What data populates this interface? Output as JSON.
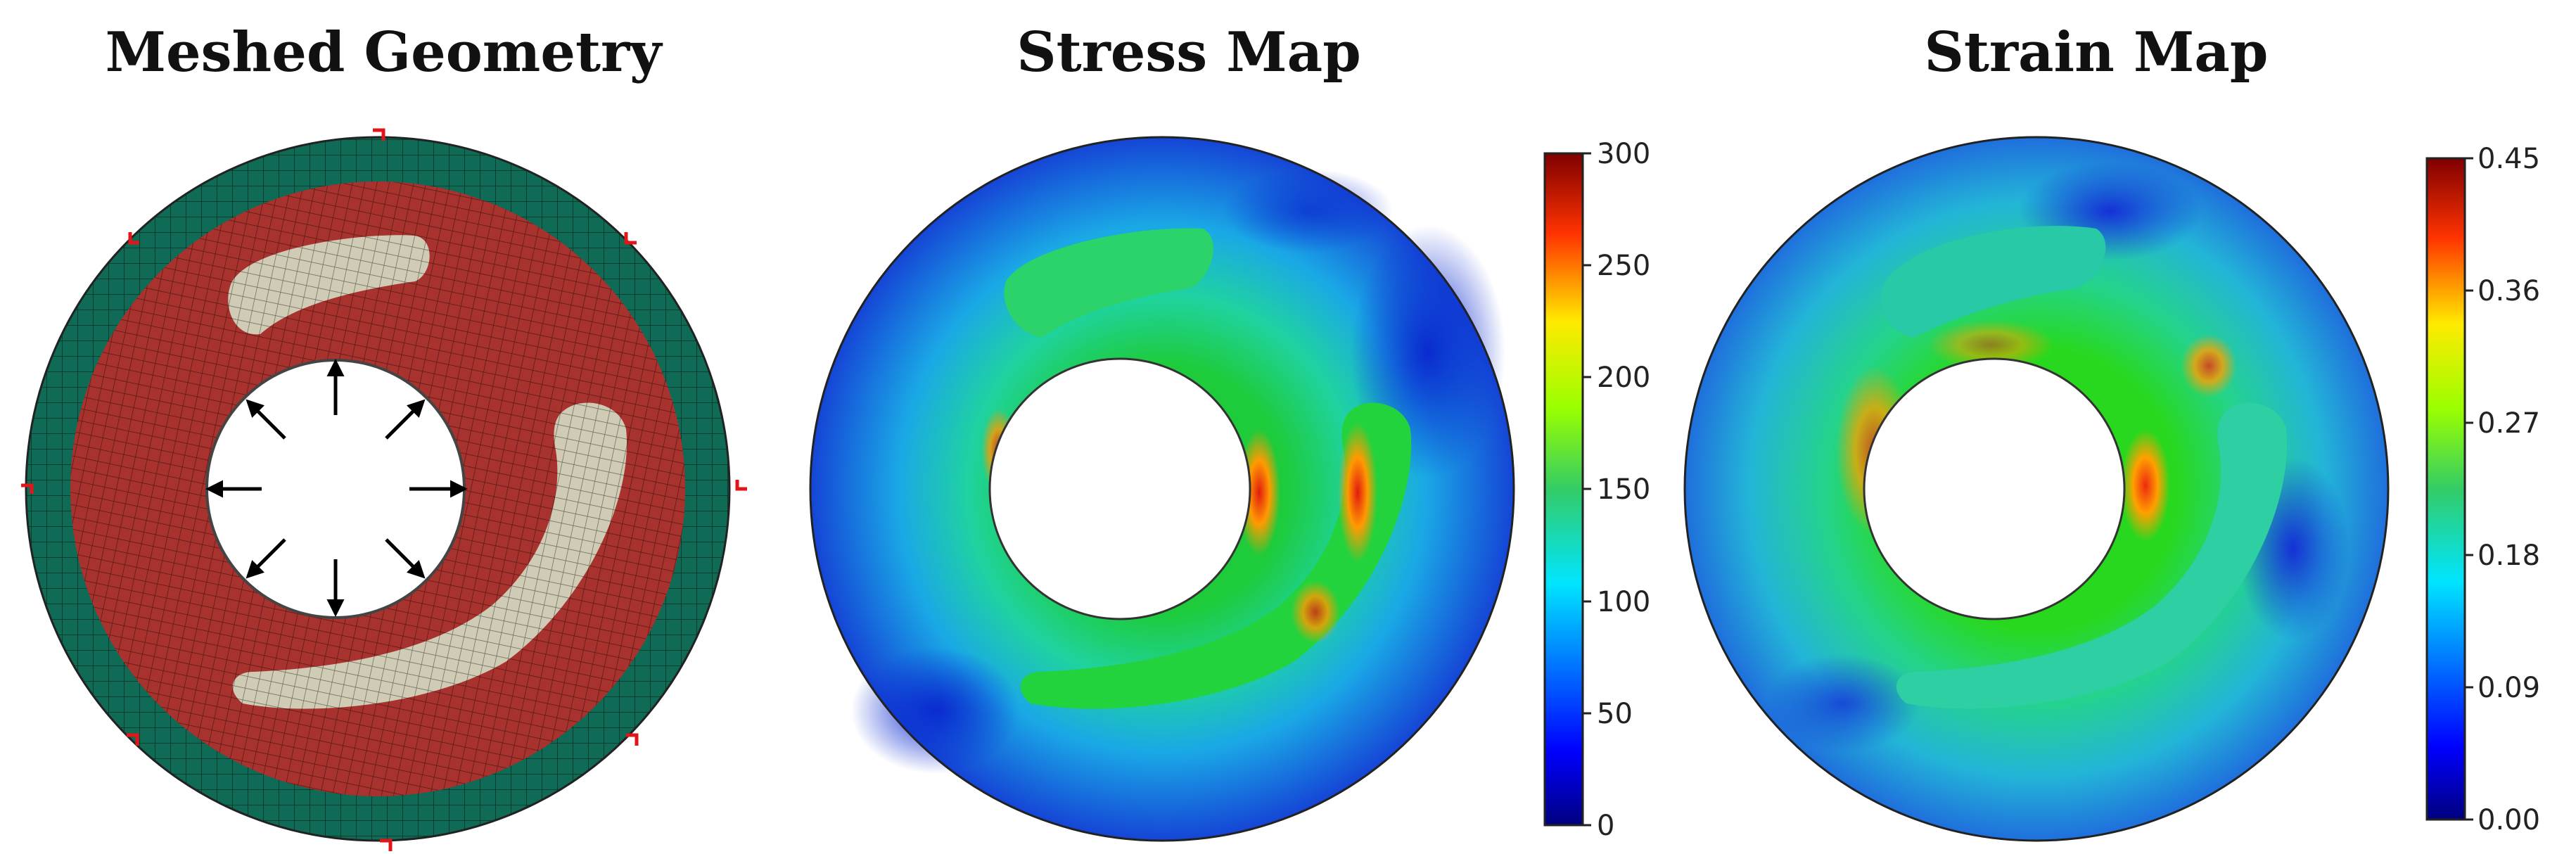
{
  "panels": [
    {
      "title": "Meshed Geometry"
    },
    {
      "title": "Stress Map"
    },
    {
      "title": "Strain Map"
    }
  ],
  "stress_colorbar": {
    "ticks": [
      "300",
      "250",
      "200",
      "150",
      "100",
      "50",
      "0"
    ]
  },
  "strain_colorbar": {
    "ticks": [
      "0.45",
      "0.36",
      "0.27",
      "0.18",
      "0.09",
      "0.00"
    ]
  },
  "colors": {
    "outer_ring": "#0f6b55",
    "matrix": "#a8322d",
    "inclusion": "#cfcbb5",
    "boundary_marker": "#e0161b",
    "arrow": "#000000"
  }
}
